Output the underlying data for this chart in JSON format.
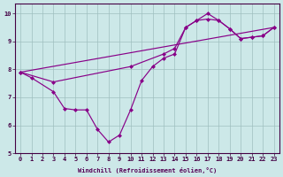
{
  "xlabel": "Windchill (Refroidissement éolien,°C)",
  "ylabel": "",
  "bg_color": "#cce8e8",
  "line_color": "#880088",
  "line1_x": [
    0,
    1,
    3,
    4,
    5,
    6,
    7,
    8,
    9,
    10,
    11,
    12,
    13,
    14,
    15,
    16,
    17,
    18,
    19,
    20,
    21,
    22,
    23
  ],
  "line1_y": [
    7.9,
    7.7,
    7.2,
    6.6,
    6.55,
    6.55,
    5.85,
    5.4,
    5.65,
    6.55,
    7.6,
    8.1,
    8.4,
    8.55,
    9.5,
    9.75,
    10.0,
    9.75,
    9.45,
    9.1,
    9.15,
    9.2,
    9.5
  ],
  "line2_x": [
    0,
    3,
    10,
    13,
    14,
    15,
    16,
    17,
    18,
    19,
    20,
    21,
    22,
    23
  ],
  "line2_y": [
    7.9,
    7.55,
    8.1,
    8.55,
    8.75,
    9.5,
    9.75,
    9.8,
    9.75,
    9.45,
    9.1,
    9.15,
    9.2,
    9.5
  ],
  "line3_x": [
    0,
    23
  ],
  "line3_y": [
    7.9,
    9.5
  ],
  "xlim": [
    -0.5,
    23.5
  ],
  "ylim": [
    5.0,
    10.35
  ],
  "yticks": [
    5,
    6,
    7,
    8,
    9,
    10
  ],
  "xticks": [
    0,
    1,
    2,
    3,
    4,
    5,
    6,
    7,
    8,
    9,
    10,
    11,
    12,
    13,
    14,
    15,
    16,
    17,
    18,
    19,
    20,
    21,
    22,
    23
  ]
}
